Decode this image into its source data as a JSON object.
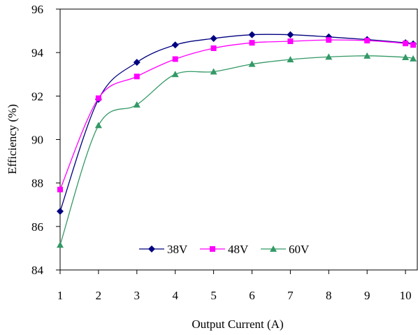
{
  "chart_data": {
    "type": "line",
    "title": "",
    "xlabel": "Output Current (A)",
    "ylabel": "Efficiency (%)",
    "xlim": [
      1,
      10.2
    ],
    "ylim": [
      84,
      96
    ],
    "xticks": [
      "1",
      "2",
      "3",
      "4",
      "5",
      "6",
      "7",
      "8",
      "9",
      "10"
    ],
    "yticks": [
      "84",
      "86",
      "88",
      "90",
      "92",
      "94",
      "96"
    ],
    "grid": false,
    "legend_position": "bottom-center",
    "series": [
      {
        "name": "38V",
        "color": "#000080",
        "marker": "diamond",
        "x": [
          1,
          2,
          3,
          4,
          5,
          6,
          7,
          8,
          9,
          10,
          10.2
        ],
        "y": [
          86.7,
          91.85,
          93.55,
          94.35,
          94.65,
          94.82,
          94.82,
          94.72,
          94.6,
          94.45,
          94.4
        ]
      },
      {
        "name": "48V",
        "color": "#ff00ff",
        "marker": "square",
        "x": [
          1,
          2,
          3,
          4,
          5,
          6,
          7,
          8,
          9,
          10,
          10.2
        ],
        "y": [
          87.7,
          91.9,
          92.9,
          93.7,
          94.2,
          94.45,
          94.52,
          94.58,
          94.55,
          94.42,
          94.35
        ]
      },
      {
        "name": "60V",
        "color": "#339966",
        "marker": "triangle",
        "x": [
          1,
          2,
          3,
          4,
          5,
          6,
          7,
          8,
          9,
          10,
          10.2
        ],
        "y": [
          85.15,
          90.65,
          91.6,
          93.0,
          93.12,
          93.47,
          93.68,
          93.8,
          93.85,
          93.78,
          93.72
        ]
      }
    ]
  }
}
